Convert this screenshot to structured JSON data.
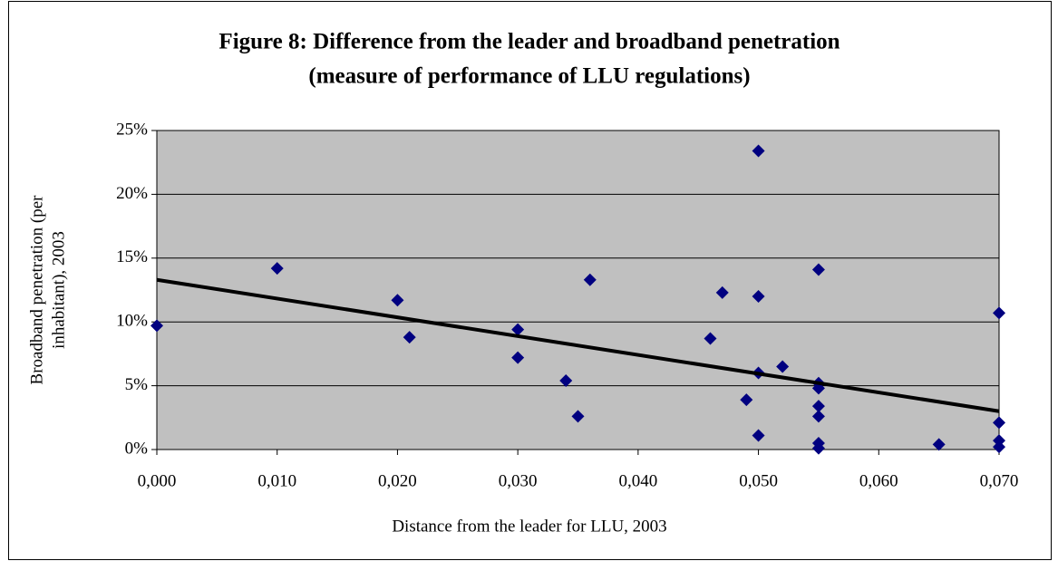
{
  "chart_data": {
    "type": "scatter",
    "title": [
      "Figure 8: Difference from the leader and broadband penetration",
      "(measure of performance of LLU regulations)"
    ],
    "x_label": "Distance from the leader for LLU, 2003",
    "y_label": [
      "Broadband penetration (per",
      "inhabitant), 2003"
    ],
    "xlim": [
      0,
      0.07
    ],
    "ylim": [
      0,
      25
    ],
    "xticks": [
      {
        "value": 0,
        "label": "0,000"
      },
      {
        "value": 0.01,
        "label": "0,010"
      },
      {
        "value": 0.02,
        "label": "0,020"
      },
      {
        "value": 0.03,
        "label": "0,030"
      },
      {
        "value": 0.04,
        "label": "0,040"
      },
      {
        "value": 0.05,
        "label": "0,050"
      },
      {
        "value": 0.06,
        "label": "0,060"
      },
      {
        "value": 0.07,
        "label": "0,070"
      }
    ],
    "yticks": [
      {
        "value": 0,
        "label": "0%"
      },
      {
        "value": 5,
        "label": "5%"
      },
      {
        "value": 10,
        "label": "10%"
      },
      {
        "value": 15,
        "label": "15%"
      },
      {
        "value": 20,
        "label": "20%"
      },
      {
        "value": 25,
        "label": "25%"
      }
    ],
    "grid": true,
    "background": "#c0c0c0",
    "color": "#000080",
    "x": [
      0,
      0.01,
      0.02,
      0.021,
      0.03,
      0.03,
      0.034,
      0.035,
      0.036,
      0.046,
      0.047,
      0.049,
      0.05,
      0.05,
      0.05,
      0.05,
      0.052,
      0.055,
      0.055,
      0.055,
      0.055,
      0.055,
      0.055,
      0.055,
      0.065,
      0.07,
      0.07,
      0.07,
      0.07
    ],
    "values": [
      9.7,
      14.2,
      11.7,
      8.8,
      9.4,
      7.2,
      5.4,
      2.6,
      13.3,
      8.7,
      12.3,
      3.9,
      23.4,
      12.0,
      6.0,
      1.1,
      6.5,
      14.1,
      5.2,
      4.8,
      3.4,
      2.6,
      0.5,
      0.1,
      0.4,
      10.7,
      2.1,
      0.7,
      0.2
    ],
    "trendline": {
      "color": "#000000",
      "x": [
        0,
        0.07
      ],
      "values": [
        13.3,
        3.0
      ]
    }
  }
}
